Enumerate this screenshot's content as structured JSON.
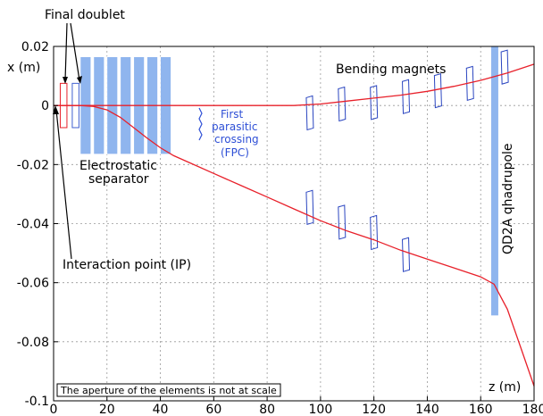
{
  "chart_data": {
    "type": "line",
    "x_axis": {
      "label": "z (m)",
      "ticks": [
        0,
        20,
        40,
        60,
        80,
        100,
        120,
        140,
        160,
        180
      ],
      "range": [
        0,
        180
      ]
    },
    "y_axis": {
      "label": "x (m)",
      "ticks": [
        0.02,
        0,
        -0.02,
        -0.04,
        -0.06,
        -0.08,
        -0.1
      ],
      "tick_labels": [
        "0.02",
        "0",
        "-0.02",
        "-0.04",
        "-0.06",
        "-0.08",
        "-0.1"
      ],
      "range": [
        -0.1,
        0.02
      ]
    },
    "grid": true,
    "series": [
      {
        "color": "#e8202a",
        "points": [
          [
            0,
            0
          ],
          [
            30,
            0
          ],
          [
            60,
            0
          ],
          [
            90,
            0
          ],
          [
            100,
            0.0005
          ],
          [
            110,
            0.0015
          ],
          [
            120,
            0.0025
          ],
          [
            130,
            0.0035
          ],
          [
            140,
            0.0048
          ],
          [
            150,
            0.0065
          ],
          [
            160,
            0.0085
          ],
          [
            170,
            0.011
          ],
          [
            180,
            0.014
          ]
        ]
      },
      {
        "color": "#e8202a",
        "points": [
          [
            0,
            0
          ],
          [
            10,
            0
          ],
          [
            15,
            -0.0003
          ],
          [
            20,
            -0.0015
          ],
          [
            25,
            -0.004
          ],
          [
            30,
            -0.0075
          ],
          [
            35,
            -0.011
          ],
          [
            40,
            -0.0143
          ],
          [
            45,
            -0.017
          ],
          [
            50,
            -0.019
          ],
          [
            60,
            -0.023
          ],
          [
            70,
            -0.027
          ],
          [
            80,
            -0.031
          ],
          [
            90,
            -0.035
          ],
          [
            100,
            -0.039
          ],
          [
            110,
            -0.0425
          ],
          [
            120,
            -0.0455
          ],
          [
            130,
            -0.049
          ],
          [
            140,
            -0.052
          ],
          [
            150,
            -0.055
          ],
          [
            160,
            -0.058
          ],
          [
            165,
            -0.0605
          ],
          [
            170,
            -0.069
          ],
          [
            175,
            -0.082
          ],
          [
            180,
            -0.095
          ]
        ]
      }
    ],
    "elements": {
      "final_doublet": [
        [
          2.5,
          5,
          -0.0075,
          0.0075
        ],
        [
          7,
          9.5,
          -0.0075,
          0.0075
        ]
      ],
      "separator_plates": [
        [
          10,
          14,
          -0.0165,
          0.0165
        ],
        [
          15,
          19,
          -0.0165,
          0.0165
        ],
        [
          20,
          24,
          -0.0165,
          0.0165
        ],
        [
          25,
          29,
          -0.0165,
          0.0165
        ],
        [
          30,
          34,
          -0.0165,
          0.0165
        ],
        [
          35,
          39,
          -0.0165,
          0.0165
        ],
        [
          40,
          44,
          -0.0165,
          0.0165
        ]
      ],
      "quadrupole": [
        164,
        166.5,
        -0.071,
        0.02
      ],
      "bend_upper": [
        [
          96,
          -0.0025
        ],
        [
          108,
          0.0005
        ],
        [
          120,
          0.001
        ],
        [
          132,
          0.003
        ],
        [
          144,
          0.005
        ],
        [
          156,
          0.0075
        ],
        [
          169,
          0.013
        ]
      ],
      "bend_lower": [
        [
          96,
          -0.0345
        ],
        [
          108,
          -0.0395
        ],
        [
          120,
          -0.043
        ],
        [
          132,
          -0.0505
        ]
      ]
    },
    "colors": {
      "beam": "#e8202a",
      "element_fill": "#8fb5ee",
      "element_stroke": "#2a45c0",
      "doublet_left": "#e8202a",
      "doublet_right": "#4060d0",
      "annotation_blue": "#2e4fd6"
    }
  },
  "labels": {
    "final_doublet": "Final doublet",
    "bending_magnets": "Bending magnets",
    "separator_line1": "Electrostatic",
    "separator_line2": "separator",
    "fpc_line1": "First",
    "fpc_line2": "parasitic",
    "fpc_line3": "crossing",
    "fpc_line4": "(FPC)",
    "quadrupole": "QD2A qhadrupole",
    "ip": "Interaction point (IP)",
    "note": "The aperture of the elements is not at scale",
    "x_axis_label": "z (m)",
    "y_axis_label": "x (m)"
  }
}
